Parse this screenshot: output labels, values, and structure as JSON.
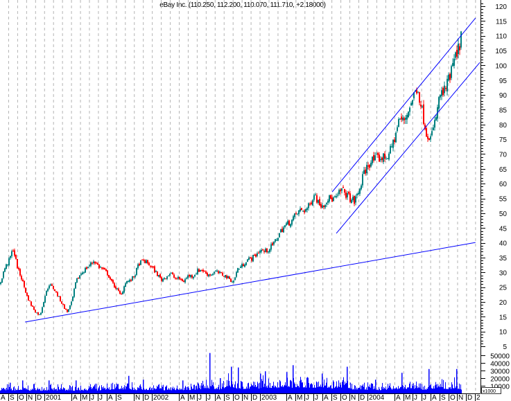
{
  "chart_data": {
    "type": "candlestick",
    "title": "eBay Inc. (110.250, 112.200, 110.070, 111.710, +2.18000)",
    "last_bar": {
      "open": 110.25,
      "high": 112.2,
      "low": 110.07,
      "close": 111.71,
      "change": 2.18
    },
    "colors": {
      "up": "#008080",
      "down": "#ff0000",
      "volume": "#0000ff",
      "trendline": "#0000ff",
      "grid": "#b4b4b4"
    },
    "price_axis": {
      "min": 5,
      "max": 120,
      "ticks": [
        120,
        115,
        110,
        105,
        100,
        95,
        90,
        85,
        80,
        75,
        70,
        65,
        60,
        55,
        50,
        45,
        40,
        35,
        30,
        25,
        20,
        15,
        10,
        5
      ],
      "position": "right"
    },
    "volume_axis": {
      "ticks": [
        50000,
        40000,
        30000,
        20000,
        10000
      ],
      "unit_label": "x1000"
    },
    "grid": {
      "vertical": true,
      "horizontal": false
    },
    "x_ticks": [
      {
        "date": "2000-08",
        "label": "A"
      },
      {
        "date": "2000-09",
        "label": "S"
      },
      {
        "date": "2000-10",
        "label": "O"
      },
      {
        "date": "2000-11",
        "label": "N"
      },
      {
        "date": "2000-12",
        "label": "D"
      },
      {
        "date": "2001-01",
        "label": "2001"
      },
      {
        "date": "2001-04",
        "label": "A"
      },
      {
        "date": "2001-05",
        "label": "M"
      },
      {
        "date": "2001-06",
        "label": "J"
      },
      {
        "date": "2001-07",
        "label": "J"
      },
      {
        "date": "2001-08",
        "label": "A"
      },
      {
        "date": "2001-09",
        "label": "S"
      },
      {
        "date": "2001-11",
        "label": "N"
      },
      {
        "date": "2001-12",
        "label": "D"
      },
      {
        "date": "2002-01",
        "label": "2002"
      },
      {
        "date": "2002-04",
        "label": "A"
      },
      {
        "date": "2002-05",
        "label": "M"
      },
      {
        "date": "2002-06",
        "label": "J"
      },
      {
        "date": "2002-07",
        "label": "J"
      },
      {
        "date": "2002-08",
        "label": "A"
      },
      {
        "date": "2002-09",
        "label": "S"
      },
      {
        "date": "2002-10",
        "label": "O"
      },
      {
        "date": "2002-11",
        "label": "N"
      },
      {
        "date": "2002-12",
        "label": "D"
      },
      {
        "date": "2003-01",
        "label": "2003"
      },
      {
        "date": "2003-04",
        "label": "A"
      },
      {
        "date": "2003-05",
        "label": "M"
      },
      {
        "date": "2003-06",
        "label": "J"
      },
      {
        "date": "2003-07",
        "label": "J"
      },
      {
        "date": "2003-08",
        "label": "A"
      },
      {
        "date": "2003-09",
        "label": "S"
      },
      {
        "date": "2003-10",
        "label": "O"
      },
      {
        "date": "2003-11",
        "label": "N"
      },
      {
        "date": "2003-12",
        "label": "D"
      },
      {
        "date": "2004-01",
        "label": "2004"
      },
      {
        "date": "2004-04",
        "label": "A"
      },
      {
        "date": "2004-05",
        "label": "M"
      },
      {
        "date": "2004-06",
        "label": "J"
      },
      {
        "date": "2004-07",
        "label": "J"
      },
      {
        "date": "2004-08",
        "label": "A"
      },
      {
        "date": "2004-09",
        "label": "S"
      },
      {
        "date": "2004-10",
        "label": "O"
      },
      {
        "date": "2004-11",
        "label": "N"
      },
      {
        "date": "2004-12",
        "label": "D"
      },
      {
        "date": "2005-01",
        "label": "2"
      }
    ],
    "close": [
      26,
      31,
      34,
      38,
      31,
      27.5,
      22,
      19,
      16.5,
      15.5,
      22,
      26,
      24.5,
      22,
      19,
      16.5,
      20,
      27,
      29.5,
      31,
      32.5,
      34,
      32,
      31,
      29.5,
      26.5,
      24.5,
      22,
      27,
      27,
      29,
      33,
      34,
      33,
      31.5,
      29.5,
      27.5,
      28.5,
      29.8,
      28,
      27.8,
      27,
      29,
      28.7,
      30.5,
      31,
      29.5,
      29.2,
      30.3,
      29.6,
      29,
      28,
      26.8,
      31.2,
      32.3,
      34.2,
      34.7,
      35.8,
      37.6,
      37,
      38,
      39.6,
      42.5,
      44.9,
      46.4,
      47.5,
      49.7,
      51,
      51.1,
      52.5,
      57,
      53.5,
      52.8,
      55,
      54.8,
      55,
      58,
      56.7,
      55,
      54,
      57.5,
      63,
      66.5,
      67.9,
      68.5,
      68.7,
      69,
      71,
      76,
      82,
      81,
      85,
      89,
      93,
      85,
      77.6,
      75.3,
      81,
      90,
      91,
      95,
      100.5,
      104.5,
      111.7
    ],
    "volume": [
      7000,
      6000,
      8000,
      6000,
      7000,
      6000,
      7000,
      6000,
      8000,
      6000,
      6000,
      7000,
      6000,
      6000,
      8000,
      6000,
      7000,
      6000,
      6000,
      7000,
      7000,
      8000,
      6000,
      7000,
      8000,
      9000,
      10000,
      9000,
      8000,
      9000,
      8000,
      7000,
      8000,
      8000,
      8000,
      7000,
      8000,
      7000,
      6000,
      7000,
      8000,
      7000,
      7000,
      8000,
      9000,
      10000,
      12000,
      10000,
      10000,
      9000,
      12000,
      14000,
      13000,
      11000,
      11000,
      10000,
      10000,
      10000,
      12000,
      14000,
      13000,
      12000,
      13000,
      15000,
      14000,
      13000,
      15000,
      14000,
      14000,
      13000,
      13000,
      14000,
      14000,
      12000,
      11000,
      12000,
      14000,
      12000,
      10000,
      9000,
      9000,
      10000,
      8000,
      9000,
      8000,
      7000,
      8000,
      9000,
      8000,
      9000,
      10000,
      9000,
      10000,
      9000,
      9000,
      8000,
      9000,
      10000,
      11000,
      10000,
      10000,
      11000,
      10000,
      9000
    ],
    "volume_spikes": [
      {
        "date": "2000-09-05",
        "volume": 14000
      },
      {
        "date": "2000-10-17",
        "volume": 17000
      },
      {
        "date": "2001-01-15",
        "volume": 17000
      },
      {
        "date": "2001-04-15",
        "volume": 17000
      },
      {
        "date": "2001-10-13",
        "volume": 23000
      },
      {
        "date": "2001-12-01",
        "volume": 18000
      },
      {
        "date": "2002-04-12",
        "volume": 17000
      },
      {
        "date": "2002-07-12",
        "volume": 53000
      },
      {
        "date": "2002-08-17",
        "volume": 20000
      },
      {
        "date": "2002-09-24",
        "volume": 35000
      },
      {
        "date": "2002-10-18",
        "volume": 34000
      },
      {
        "date": "2003-01-03",
        "volume": 26000
      },
      {
        "date": "2003-01-18",
        "volume": 29000
      },
      {
        "date": "2003-04-01",
        "volume": 28000
      },
      {
        "date": "2003-04-21",
        "volume": 37000
      },
      {
        "date": "2003-07-28",
        "volume": 26000
      },
      {
        "date": "2003-10-21",
        "volume": 35000
      },
      {
        "date": "2004-01-26",
        "volume": 18000
      },
      {
        "date": "2004-04-24",
        "volume": 27000
      },
      {
        "date": "2004-07-25",
        "volume": 32000
      },
      {
        "date": "2004-10-28",
        "volume": 32000
      }
    ],
    "trendlines": [
      {
        "start": {
          "date": "2000-10-27",
          "price": 13.2
        },
        "end": {
          "date": "2005-01-02",
          "price": 40.1
        }
      },
      {
        "start": {
          "date": "2003-09-03",
          "price": 57.2
        },
        "end": {
          "date": "2005-01-02",
          "price": 116.0
        }
      },
      {
        "start": {
          "date": "2003-09-17",
          "price": 43.2
        },
        "end": {
          "date": "2005-01-25",
          "price": 102.0
        }
      }
    ]
  }
}
